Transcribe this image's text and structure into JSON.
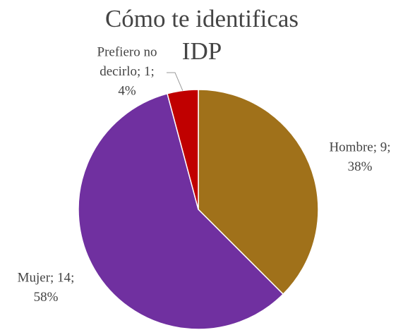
{
  "chart_data": {
    "type": "pie",
    "title": "Cómo te identificas IDP",
    "categories": [
      "Hombre",
      "Mujer",
      "Prefiero no decirlo"
    ],
    "values": [
      9,
      14,
      1
    ],
    "value_labels": [
      [
        "Hombre; 9;",
        "38%"
      ],
      [
        "Mujer; 14;",
        "58%"
      ],
      [
        "Prefiero no",
        "decirlo; 1;",
        "4%"
      ]
    ],
    "colors": [
      "#a0711a",
      "#7030a0",
      "#c00000"
    ]
  }
}
